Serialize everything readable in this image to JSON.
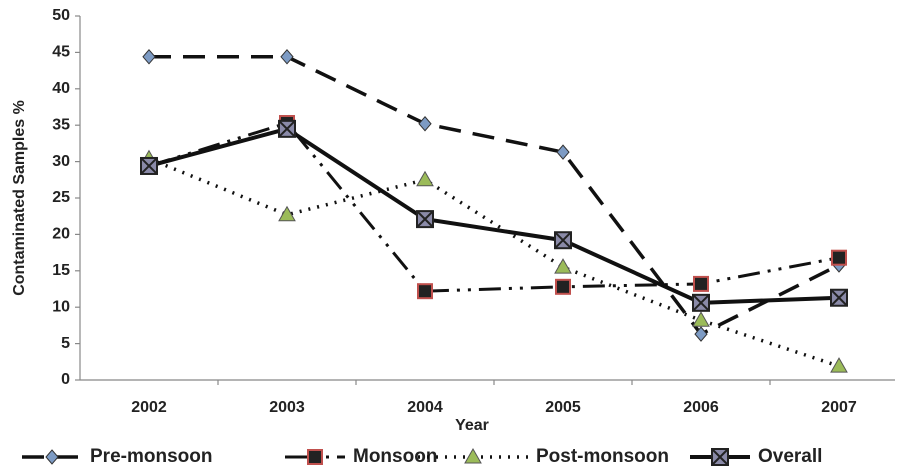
{
  "chart_data": {
    "type": "line",
    "y_label": "Contaminated Samples %",
    "x_label": "Year",
    "categories": [
      "2002",
      "2003",
      "2004",
      "2005",
      "2006",
      "2007"
    ],
    "ylim": [
      0,
      50
    ],
    "yticks": [
      0,
      5,
      10,
      15,
      20,
      25,
      30,
      35,
      40,
      45,
      50
    ],
    "legend": "bottom",
    "series": [
      {
        "name": "Pre-monsoon",
        "color": "#7d9bc4",
        "values": [
          44.4,
          44.4,
          35.2,
          31.3,
          6.3,
          15.8
        ]
      },
      {
        "name": "Monsoon",
        "color": "#c0504d",
        "values": [
          29.4,
          35.3,
          12.2,
          12.8,
          13.2,
          16.8
        ]
      },
      {
        "name": "Post-monsoon",
        "color": "#9bbb59",
        "values": [
          30.4,
          22.7,
          27.5,
          15.5,
          8.2,
          1.9
        ]
      },
      {
        "name": "Overall",
        "color": "#8a8aa8",
        "values": [
          29.4,
          34.5,
          22.1,
          19.2,
          10.6,
          11.3
        ]
      }
    ]
  }
}
